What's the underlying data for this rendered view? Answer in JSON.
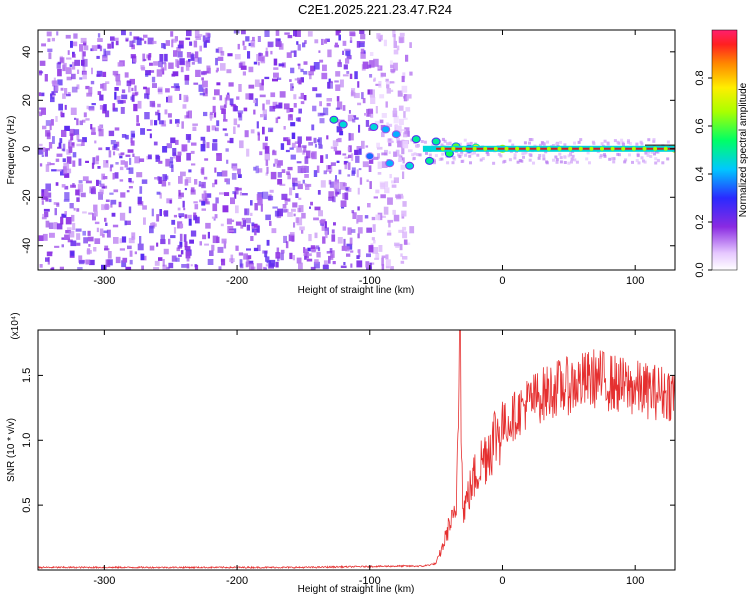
{
  "title": "C2E1.2025.221.23.47.R24",
  "colors": {
    "snr_line": "#e53030",
    "carrier_line": "#cc2222",
    "noise": "#7a1fe0"
  },
  "chart_data": [
    {
      "type": "heatmap",
      "title": "C2E1.2025.221.23.47.R24",
      "xlabel": "Height of straight line (km)",
      "ylabel": "Frequency (Hz)",
      "xlim": [
        -350,
        130
      ],
      "ylim": [
        -50,
        49
      ],
      "xticks": [
        -300,
        -200,
        -100,
        0,
        100
      ],
      "yticks": [
        -40,
        -20,
        0,
        20,
        40
      ],
      "colorbar": {
        "label": "Normalized spectral amplitude",
        "range": [
          0,
          1
        ],
        "ticks": [
          0.0,
          0.2,
          0.4,
          0.6,
          0.8
        ],
        "tick_labels": [
          "0.0",
          "0.2",
          "0.4",
          "0.6",
          "0.8"
        ]
      },
      "noise_region": {
        "x_from": -350,
        "x_to": -70,
        "amplitude_range": [
          0.1,
          0.25
        ]
      },
      "carrier_track": [
        {
          "x": -127,
          "freq": 12,
          "amp": 0.5
        },
        {
          "x": -120,
          "freq": 10,
          "amp": 0.45
        },
        {
          "x": -97,
          "freq": 9,
          "amp": 0.45
        },
        {
          "x": -88,
          "freq": 8,
          "amp": 0.4
        },
        {
          "x": -80,
          "freq": 6,
          "amp": 0.4
        },
        {
          "x": -65,
          "freq": 4,
          "amp": 0.5
        },
        {
          "x": -50,
          "freq": 3,
          "amp": 0.5
        },
        {
          "x": -35,
          "freq": 1,
          "amp": 0.6
        },
        {
          "x": -20,
          "freq": 0.5,
          "amp": 0.75
        },
        {
          "x": 0,
          "freq": 0,
          "amp": 0.9
        },
        {
          "x": 130,
          "freq": 0,
          "amp": 0.95
        }
      ],
      "mirror_track": [
        {
          "x": -100,
          "freq": -3,
          "amp": 0.35
        },
        {
          "x": -85,
          "freq": -6,
          "amp": 0.4
        },
        {
          "x": -70,
          "freq": -7,
          "amp": 0.45
        },
        {
          "x": -55,
          "freq": -5,
          "amp": 0.5
        },
        {
          "x": -40,
          "freq": -2,
          "amp": 0.55
        },
        {
          "x": -25,
          "freq": 0,
          "amp": 0.6
        }
      ]
    },
    {
      "type": "line",
      "xlabel": "Height of straight line (km)",
      "ylabel": "SNR (10 * v/v)",
      "multiplier_label": "(x10⁴)",
      "xlim": [
        -350,
        130
      ],
      "ylim": [
        0,
        1.85
      ],
      "xticks": [
        -300,
        -200,
        -100,
        0,
        100
      ],
      "yticks": [
        0.5,
        1.0,
        1.5
      ],
      "ytick_labels": [
        "0.5",
        "1.0",
        "1.5"
      ],
      "series": [
        {
          "points": [
            [
              -350,
              0.02
            ],
            [
              -250,
              0.02
            ],
            [
              -150,
              0.02
            ],
            [
              -80,
              0.03
            ],
            [
              -60,
              0.03
            ],
            [
              -50,
              0.05
            ],
            [
              -45,
              0.18
            ],
            [
              -40,
              0.35
            ],
            [
              -35,
              0.42
            ],
            [
              -32,
              1.85
            ],
            [
              -30,
              0.45
            ],
            [
              -25,
              0.6
            ],
            [
              -20,
              0.75
            ],
            [
              -15,
              0.85
            ],
            [
              -10,
              0.95
            ],
            [
              -5,
              1.05
            ],
            [
              0,
              1.1
            ],
            [
              10,
              1.2
            ],
            [
              20,
              1.3
            ],
            [
              30,
              1.35
            ],
            [
              40,
              1.4
            ],
            [
              50,
              1.42
            ],
            [
              60,
              1.45
            ],
            [
              70,
              1.48
            ],
            [
              80,
              1.45
            ],
            [
              90,
              1.42
            ],
            [
              100,
              1.4
            ],
            [
              110,
              1.38
            ],
            [
              120,
              1.37
            ],
            [
              130,
              1.36
            ]
          ]
        }
      ]
    }
  ]
}
